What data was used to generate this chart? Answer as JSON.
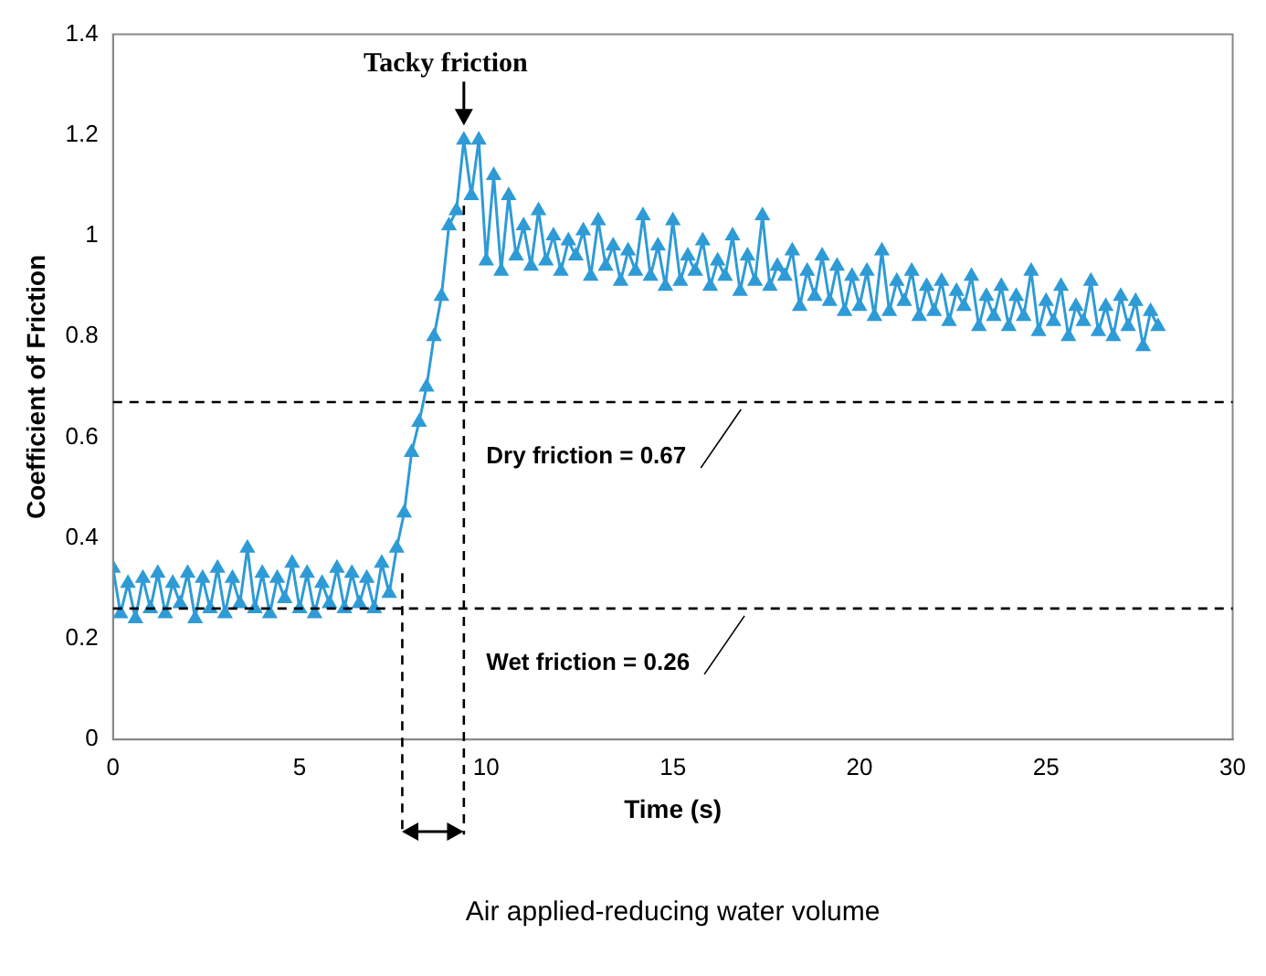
{
  "chart_data": {
    "type": "line",
    "xlabel": "Time (s)",
    "ylabel": "Coefficient of Friction",
    "xlim": [
      0,
      30
    ],
    "xticks": [
      0,
      5,
      10,
      15,
      20,
      25,
      30
    ],
    "ylim": [
      0,
      1.4
    ],
    "yticks": [
      0,
      0.2,
      0.4,
      0.6,
      0.8,
      1,
      1.2,
      1.4
    ],
    "grid": false,
    "legend": false,
    "marker": "triangle",
    "line_style": "solid",
    "series": [
      {
        "color": "#2e9bd6",
        "x": [
          0,
          0.2,
          0.4,
          0.6,
          0.8,
          1,
          1.2,
          1.4,
          1.6,
          1.8,
          2,
          2.2,
          2.4,
          2.6,
          2.8,
          3,
          3.2,
          3.4,
          3.6,
          3.8,
          4,
          4.2,
          4.4,
          4.6,
          4.8,
          5,
          5.2,
          5.4,
          5.6,
          5.8,
          6,
          6.2,
          6.4,
          6.6,
          6.8,
          7,
          7.2,
          7.4,
          7.6,
          7.8,
          8,
          8.2,
          8.4,
          8.6,
          8.8,
          9,
          9.2,
          9.4,
          9.6,
          9.8,
          10,
          10.2,
          10.4,
          10.6,
          10.8,
          11,
          11.2,
          11.4,
          11.6,
          11.8,
          12,
          12.2,
          12.4,
          12.6,
          12.8,
          13,
          13.2,
          13.4,
          13.6,
          13.8,
          14,
          14.2,
          14.4,
          14.6,
          14.8,
          15,
          15.2,
          15.4,
          15.6,
          15.8,
          16,
          16.2,
          16.4,
          16.6,
          16.8,
          17,
          17.2,
          17.4,
          17.6,
          17.8,
          18,
          18.2,
          18.4,
          18.6,
          18.8,
          19,
          19.2,
          19.4,
          19.6,
          19.8,
          20,
          20.2,
          20.4,
          20.6,
          20.8,
          21,
          21.2,
          21.4,
          21.6,
          21.8,
          22,
          22.2,
          22.4,
          22.6,
          22.8,
          23,
          23.2,
          23.4,
          23.6,
          23.8,
          24,
          24.2,
          24.4,
          24.6,
          24.8,
          25,
          25.2,
          25.4,
          25.6,
          25.8,
          26,
          26.2,
          26.4,
          26.6,
          26.8,
          27,
          27.2,
          27.4,
          27.6,
          27.8,
          28
        ],
        "values": [
          0.34,
          0.25,
          0.31,
          0.24,
          0.32,
          0.26,
          0.33,
          0.25,
          0.31,
          0.27,
          0.33,
          0.24,
          0.32,
          0.26,
          0.34,
          0.25,
          0.32,
          0.27,
          0.38,
          0.26,
          0.33,
          0.25,
          0.32,
          0.28,
          0.35,
          0.26,
          0.33,
          0.25,
          0.31,
          0.27,
          0.34,
          0.26,
          0.33,
          0.27,
          0.32,
          0.26,
          0.35,
          0.29,
          0.38,
          0.45,
          0.57,
          0.63,
          0.7,
          0.8,
          0.88,
          1.02,
          1.05,
          1.19,
          1.08,
          1.19,
          0.95,
          1.12,
          0.93,
          1.08,
          0.96,
          1.02,
          0.94,
          1.05,
          0.95,
          1,
          0.93,
          0.99,
          0.96,
          1.01,
          0.92,
          1.03,
          0.94,
          0.98,
          0.91,
          0.97,
          0.93,
          1.04,
          0.92,
          0.98,
          0.9,
          1.03,
          0.91,
          0.96,
          0.93,
          0.99,
          0.9,
          0.95,
          0.92,
          1,
          0.89,
          0.96,
          0.91,
          1.04,
          0.9,
          0.94,
          0.92,
          0.97,
          0.86,
          0.93,
          0.88,
          0.96,
          0.87,
          0.94,
          0.85,
          0.92,
          0.86,
          0.93,
          0.84,
          0.97,
          0.85,
          0.91,
          0.87,
          0.93,
          0.84,
          0.9,
          0.85,
          0.91,
          0.83,
          0.89,
          0.86,
          0.92,
          0.82,
          0.88,
          0.84,
          0.9,
          0.82,
          0.88,
          0.84,
          0.93,
          0.81,
          0.87,
          0.83,
          0.9,
          0.8,
          0.86,
          0.83,
          0.91,
          0.81,
          0.86,
          0.8,
          0.88,
          0.82,
          0.87,
          0.78,
          0.85,
          0.82
        ]
      }
    ],
    "ref_lines": [
      {
        "axis": "y",
        "value": 0.67,
        "label": "Dry friction = 0.67",
        "color": "#000000",
        "line_style": "dashed"
      },
      {
        "axis": "y",
        "value": 0.26,
        "label": "Wet friction = 0.26",
        "color": "#000000",
        "line_style": "dashed"
      },
      {
        "axis": "x",
        "value": 7.75,
        "color": "#000000",
        "line_style": "dashed"
      },
      {
        "axis": "x",
        "value": 9.4,
        "color": "#000000",
        "line_style": "dashed"
      }
    ],
    "annotations": [
      {
        "text": "Tacky friction",
        "x": 9.4,
        "y": 1.19
      },
      "Air applied-reducing water volume"
    ]
  }
}
